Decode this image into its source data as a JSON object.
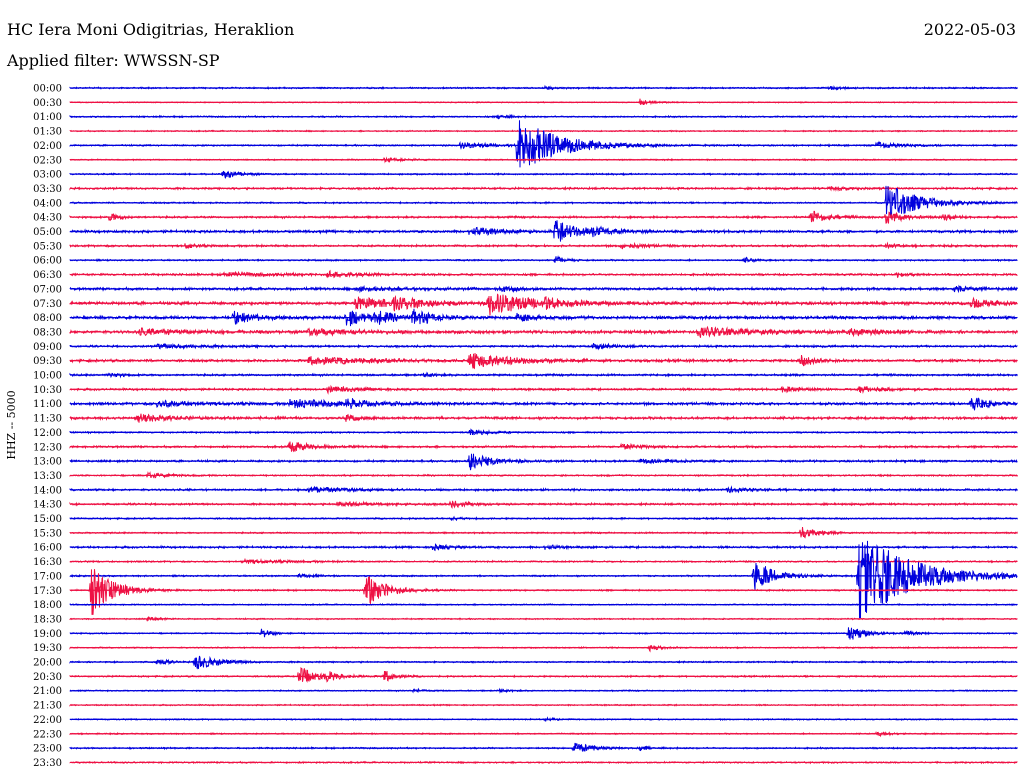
{
  "header": {
    "station": "HC Iera Moni Odigitrias, Heraklion",
    "date": "2022-05-03",
    "filter": "Applied filter: WWSSN-SP"
  },
  "chart_data": {
    "type": "line",
    "title": "HC Iera Moni Odigitrias, Heraklion",
    "ylabel": "HHZ -- 5000",
    "row_labels": [
      "00:00",
      "00:30",
      "01:00",
      "01:30",
      "02:00",
      "02:30",
      "03:00",
      "03:30",
      "04:00",
      "04:30",
      "05:00",
      "05:30",
      "06:00",
      "06:30",
      "07:00",
      "07:30",
      "08:00",
      "08:30",
      "09:00",
      "09:30",
      "10:00",
      "10:30",
      "11:00",
      "11:30",
      "12:00",
      "12:30",
      "13:00",
      "13:30",
      "14:00",
      "14:30",
      "15:00",
      "15:30",
      "16:00",
      "16:30",
      "17:00",
      "17:30",
      "18:00",
      "18:30",
      "19:00",
      "19:30",
      "20:00",
      "20:30",
      "21:00",
      "21:30",
      "22:00",
      "22:30",
      "23:00",
      "23:30"
    ],
    "colors": {
      "even": "#0000dd",
      "odd": "#ee1144"
    },
    "rows": [
      {
        "noise": 0.6,
        "events": [
          {
            "t": 0.5,
            "a": 2,
            "d": 0.01
          },
          {
            "t": 0.8,
            "a": 2,
            "d": 0.01
          }
        ]
      },
      {
        "noise": 0.4,
        "events": [
          {
            "t": 0.6,
            "a": 4,
            "d": 0.01
          }
        ]
      },
      {
        "noise": 0.6,
        "events": [
          {
            "t": 0.45,
            "a": 3,
            "d": 0.01
          }
        ]
      },
      {
        "noise": 0.5,
        "events": []
      },
      {
        "noise": 0.6,
        "events": [
          {
            "t": 0.41,
            "a": 3,
            "d": 0.03
          },
          {
            "t": 0.47,
            "a": 30,
            "d": 0.04
          },
          {
            "t": 0.85,
            "a": 4,
            "d": 0.02
          }
        ]
      },
      {
        "noise": 0.5,
        "events": [
          {
            "t": 0.33,
            "a": 2,
            "d": 0.02
          }
        ]
      },
      {
        "noise": 0.6,
        "events": [
          {
            "t": 0.16,
            "a": 5,
            "d": 0.015
          }
        ]
      },
      {
        "noise": 0.8,
        "events": [
          {
            "t": 0.8,
            "a": 2,
            "d": 0.02
          }
        ]
      },
      {
        "noise": 0.6,
        "events": [
          {
            "t": 0.86,
            "a": 22,
            "d": 0.03
          }
        ]
      },
      {
        "noise": 0.8,
        "events": [
          {
            "t": 0.04,
            "a": 5,
            "d": 0.01
          },
          {
            "t": 0.78,
            "a": 8,
            "d": 0.015
          },
          {
            "t": 0.86,
            "a": 8,
            "d": 0.015
          },
          {
            "t": 0.92,
            "a": 4,
            "d": 0.01
          }
        ]
      },
      {
        "noise": 1.0,
        "events": [
          {
            "t": 0.42,
            "a": 4,
            "d": 0.03
          },
          {
            "t": 0.51,
            "a": 12,
            "d": 0.025
          },
          {
            "t": 0.55,
            "a": 3,
            "d": 0.02
          }
        ]
      },
      {
        "noise": 0.8,
        "events": [
          {
            "t": 0.12,
            "a": 3,
            "d": 0.01
          },
          {
            "t": 0.58,
            "a": 3,
            "d": 0.02
          },
          {
            "t": 0.86,
            "a": 3,
            "d": 0.01
          }
        ]
      },
      {
        "noise": 0.6,
        "events": [
          {
            "t": 0.51,
            "a": 5,
            "d": 0.01
          },
          {
            "t": 0.71,
            "a": 3,
            "d": 0.01
          }
        ]
      },
      {
        "noise": 0.8,
        "events": [
          {
            "t": 0.16,
            "a": 2,
            "d": 0.05
          },
          {
            "t": 0.27,
            "a": 3,
            "d": 0.03
          },
          {
            "t": 0.87,
            "a": 3,
            "d": 0.01
          }
        ]
      },
      {
        "noise": 1.0,
        "events": [
          {
            "t": 0.3,
            "a": 2,
            "d": 0.05
          },
          {
            "t": 0.45,
            "a": 3,
            "d": 0.02
          },
          {
            "t": 0.93,
            "a": 3,
            "d": 0.02
          }
        ]
      },
      {
        "noise": 1.2,
        "events": [
          {
            "t": 0.3,
            "a": 6,
            "d": 0.04
          },
          {
            "t": 0.34,
            "a": 5,
            "d": 0.03
          },
          {
            "t": 0.44,
            "a": 12,
            "d": 0.04
          },
          {
            "t": 0.5,
            "a": 4,
            "d": 0.02
          },
          {
            "t": 0.95,
            "a": 4,
            "d": 0.03
          }
        ]
      },
      {
        "noise": 1.2,
        "events": [
          {
            "t": 0.17,
            "a": 8,
            "d": 0.02
          },
          {
            "t": 0.29,
            "a": 10,
            "d": 0.02
          },
          {
            "t": 0.32,
            "a": 6,
            "d": 0.02
          },
          {
            "t": 0.36,
            "a": 8,
            "d": 0.02
          },
          {
            "t": 0.47,
            "a": 4,
            "d": 0.02
          }
        ]
      },
      {
        "noise": 1.2,
        "events": [
          {
            "t": 0.07,
            "a": 3,
            "d": 0.05
          },
          {
            "t": 0.25,
            "a": 3,
            "d": 0.05
          },
          {
            "t": 0.66,
            "a": 5,
            "d": 0.05
          },
          {
            "t": 0.82,
            "a": 3,
            "d": 0.03
          }
        ]
      },
      {
        "noise": 0.8,
        "events": [
          {
            "t": 0.09,
            "a": 2,
            "d": 0.05
          },
          {
            "t": 0.55,
            "a": 3,
            "d": 0.02
          }
        ]
      },
      {
        "noise": 1.0,
        "events": [
          {
            "t": 0.25,
            "a": 4,
            "d": 0.06
          },
          {
            "t": 0.42,
            "a": 8,
            "d": 0.04
          },
          {
            "t": 0.77,
            "a": 6,
            "d": 0.015
          }
        ]
      },
      {
        "noise": 0.8,
        "events": [
          {
            "t": 0.04,
            "a": 3,
            "d": 0.01
          },
          {
            "t": 0.37,
            "a": 3,
            "d": 0.01
          }
        ]
      },
      {
        "noise": 0.8,
        "events": [
          {
            "t": 0.27,
            "a": 3,
            "d": 0.03
          },
          {
            "t": 0.75,
            "a": 3,
            "d": 0.02
          },
          {
            "t": 0.83,
            "a": 3,
            "d": 0.03
          }
        ]
      },
      {
        "noise": 1.0,
        "events": [
          {
            "t": 0.09,
            "a": 3,
            "d": 0.04
          },
          {
            "t": 0.23,
            "a": 4,
            "d": 0.06
          },
          {
            "t": 0.29,
            "a": 5,
            "d": 0.02
          },
          {
            "t": 0.95,
            "a": 8,
            "d": 0.015
          }
        ]
      },
      {
        "noise": 1.0,
        "events": [
          {
            "t": 0.07,
            "a": 4,
            "d": 0.03
          },
          {
            "t": 0.29,
            "a": 4,
            "d": 0.01
          }
        ]
      },
      {
        "noise": 0.6,
        "events": [
          {
            "t": 0.42,
            "a": 3,
            "d": 0.02
          }
        ]
      },
      {
        "noise": 0.8,
        "events": [
          {
            "t": 0.23,
            "a": 6,
            "d": 0.02
          },
          {
            "t": 0.58,
            "a": 3,
            "d": 0.02
          }
        ]
      },
      {
        "noise": 0.8,
        "events": [
          {
            "t": 0.42,
            "a": 10,
            "d": 0.02
          },
          {
            "t": 0.6,
            "a": 2,
            "d": 0.03
          }
        ]
      },
      {
        "noise": 0.6,
        "events": [
          {
            "t": 0.08,
            "a": 3,
            "d": 0.02
          }
        ]
      },
      {
        "noise": 0.8,
        "events": [
          {
            "t": 0.25,
            "a": 3,
            "d": 0.04
          },
          {
            "t": 0.69,
            "a": 3,
            "d": 0.02
          }
        ]
      },
      {
        "noise": 0.8,
        "events": [
          {
            "t": 0.28,
            "a": 2,
            "d": 0.04
          },
          {
            "t": 0.4,
            "a": 3,
            "d": 0.02
          }
        ]
      },
      {
        "noise": 0.6,
        "events": [
          {
            "t": 0.4,
            "a": 2,
            "d": 0.01
          }
        ]
      },
      {
        "noise": 0.6,
        "events": [
          {
            "t": 0.77,
            "a": 7,
            "d": 0.015
          }
        ]
      },
      {
        "noise": 0.8,
        "events": [
          {
            "t": 0.38,
            "a": 3,
            "d": 0.02
          },
          {
            "t": 0.5,
            "a": 3,
            "d": 0.01
          }
        ]
      },
      {
        "noise": 0.6,
        "events": [
          {
            "t": 0.18,
            "a": 2,
            "d": 0.04
          }
        ]
      },
      {
        "noise": 0.6,
        "events": [
          {
            "t": 0.24,
            "a": 3,
            "d": 0.01
          },
          {
            "t": 0.72,
            "a": 18,
            "d": 0.02
          },
          {
            "t": 0.83,
            "a": 50,
            "d": 0.05
          }
        ]
      },
      {
        "noise": 0.6,
        "events": [
          {
            "t": 0.02,
            "a": 30,
            "d": 0.02
          },
          {
            "t": 0.31,
            "a": 18,
            "d": 0.02
          }
        ]
      },
      {
        "noise": 0.5,
        "events": []
      },
      {
        "noise": 0.5,
        "events": [
          {
            "t": 0.08,
            "a": 3,
            "d": 0.01
          }
        ]
      },
      {
        "noise": 0.5,
        "events": [
          {
            "t": 0.2,
            "a": 6,
            "d": 0.01
          },
          {
            "t": 0.82,
            "a": 10,
            "d": 0.015
          },
          {
            "t": 0.88,
            "a": 3,
            "d": 0.01
          }
        ]
      },
      {
        "noise": 0.5,
        "events": [
          {
            "t": 0.61,
            "a": 4,
            "d": 0.01
          }
        ]
      },
      {
        "noise": 0.6,
        "events": [
          {
            "t": 0.09,
            "a": 4,
            "d": 0.01
          },
          {
            "t": 0.13,
            "a": 10,
            "d": 0.02
          }
        ]
      },
      {
        "noise": 0.6,
        "events": [
          {
            "t": 0.24,
            "a": 10,
            "d": 0.02
          },
          {
            "t": 0.27,
            "a": 5,
            "d": 0.01
          },
          {
            "t": 0.33,
            "a": 8,
            "d": 0.01
          }
        ]
      },
      {
        "noise": 0.5,
        "events": [
          {
            "t": 0.36,
            "a": 2,
            "d": 0.01
          },
          {
            "t": 0.45,
            "a": 2,
            "d": 0.01
          }
        ]
      },
      {
        "noise": 0.5,
        "events": []
      },
      {
        "noise": 0.5,
        "events": [
          {
            "t": 0.5,
            "a": 2,
            "d": 0.01
          }
        ]
      },
      {
        "noise": 0.5,
        "events": [
          {
            "t": 0.85,
            "a": 3,
            "d": 0.01
          }
        ]
      },
      {
        "noise": 0.6,
        "events": [
          {
            "t": 0.53,
            "a": 6,
            "d": 0.02
          },
          {
            "t": 0.6,
            "a": 2,
            "d": 0.01
          }
        ]
      },
      {
        "noise": 0.6,
        "events": []
      }
    ]
  }
}
